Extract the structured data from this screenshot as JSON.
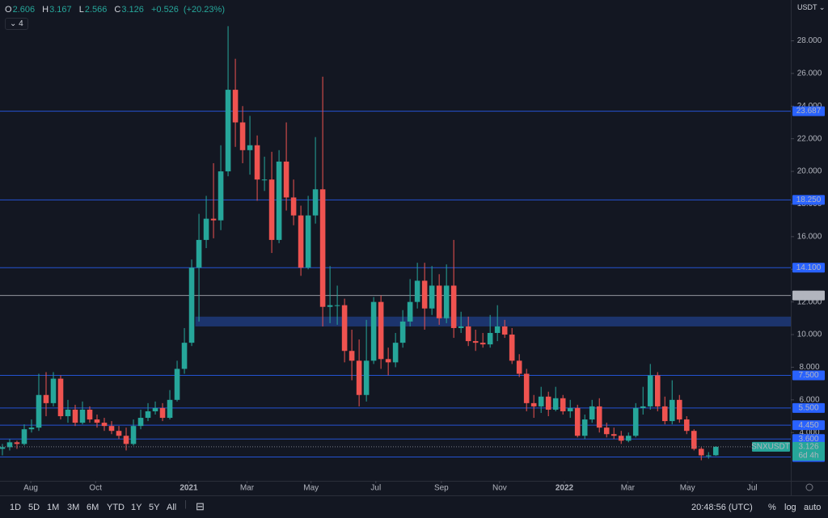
{
  "chart_data": {
    "type": "candlestick",
    "symbol": "SNXUSDT",
    "currency": "USDT",
    "indicator_count": "4",
    "legend": {
      "o": "O",
      "h": "H",
      "l": "L",
      "c": "C",
      "change": "+0.526",
      "change_pct": "(+20.23%)"
    },
    "countdown": "6d 4h",
    "up_color": "#26a69a",
    "down_color": "#ef5350",
    "open": [
      3.0,
      3.1,
      3.4,
      3.3,
      4.2,
      4.3,
      6.3,
      5.8,
      7.3,
      5.0,
      5.4,
      4.6,
      5.4,
      4.8,
      4.6,
      4.4,
      4.1,
      3.8,
      3.3,
      4.4,
      4.9,
      5.3,
      5.5,
      4.9,
      6.0,
      7.9,
      9.5,
      14.1,
      15.8,
      17.1,
      17.0,
      20.0,
      25.0,
      23.0,
      21.3,
      21.6,
      19.5,
      19.5,
      15.8,
      20.6,
      18.4,
      17.3,
      14.1,
      17.3,
      18.9,
      11.7,
      11.8,
      11.8,
      9.0,
      8.4,
      6.3,
      8.4,
      12.0,
      8.5,
      8.3,
      9.5,
      10.8,
      12.0,
      13.3,
      11.6,
      13.0,
      11.0,
      13.0,
      10.4,
      10.5,
      9.6,
      9.5,
      9.4,
      10.1,
      10.5,
      10.0,
      8.4,
      7.6,
      5.8,
      5.6,
      6.2,
      5.4,
      6.1,
      5.3,
      5.5,
      3.8,
      4.8,
      5.6,
      4.3,
      3.9,
      3.8,
      3.5,
      3.8,
      5.5,
      5.6,
      7.5,
      5.6,
      4.7,
      6.0,
      4.8,
      4.1,
      3.0,
      2.6,
      2.606
    ],
    "high": [
      3.3,
      3.6,
      3.5,
      4.5,
      4.8,
      7.6,
      7.7,
      7.7,
      7.5,
      6.0,
      5.7,
      5.9,
      5.6,
      5.1,
      4.9,
      4.7,
      4.4,
      4.3,
      4.8,
      5.4,
      5.8,
      5.9,
      5.8,
      6.6,
      8.4,
      10.4,
      14.6,
      17.4,
      18.5,
      20.5,
      21.6,
      28.9,
      26.9,
      24.0,
      23.4,
      22.2,
      20.9,
      21.2,
      21.3,
      23.0,
      19.5,
      17.9,
      18.5,
      22.1,
      25.8,
      14.2,
      13.0,
      12.2,
      10.3,
      9.7,
      10.9,
      12.3,
      12.4,
      9.2,
      10.1,
      11.5,
      13.4,
      14.4,
      14.4,
      14.2,
      13.7,
      14.3,
      15.8,
      11.4,
      11.1,
      10.3,
      10.1,
      11.2,
      11.8,
      10.9,
      10.4,
      8.8,
      7.9,
      6.3,
      6.8,
      6.5,
      6.8,
      6.3,
      6.0,
      5.7,
      5.1,
      6.0,
      6.1,
      4.6,
      4.3,
      4.1,
      4.0,
      5.8,
      6.8,
      8.2,
      7.7,
      6.2,
      7.2,
      6.3,
      5.0,
      4.2,
      3.1,
      2.8,
      3.167
    ],
    "low": [
      2.6,
      2.9,
      3.0,
      3.2,
      4.0,
      4.1,
      5.0,
      5.6,
      4.8,
      4.6,
      4.4,
      4.5,
      4.6,
      4.3,
      4.1,
      3.9,
      3.6,
      2.9,
      3.2,
      4.2,
      4.7,
      5.1,
      4.7,
      4.8,
      5.9,
      7.6,
      9.3,
      10.8,
      15.3,
      15.9,
      16.4,
      19.7,
      21.5,
      20.5,
      19.8,
      18.2,
      18.8,
      15.0,
      15.6,
      17.6,
      16.7,
      13.6,
      14.0,
      16.8,
      10.5,
      10.7,
      10.6,
      8.3,
      7.2,
      5.6,
      5.9,
      8.2,
      7.9,
      7.5,
      8.0,
      9.2,
      10.5,
      11.6,
      10.3,
      11.2,
      10.6,
      10.7,
      9.8,
      10.1,
      9.3,
      9.0,
      9.2,
      9.2,
      9.6,
      9.8,
      8.2,
      7.4,
      5.3,
      4.9,
      5.2,
      5.0,
      5.3,
      5.1,
      4.9,
      3.7,
      3.6,
      4.6,
      4.0,
      3.7,
      3.6,
      3.3,
      3.4,
      3.7,
      5.1,
      5.4,
      5.3,
      4.5,
      4.5,
      4.6,
      3.9,
      2.9,
      2.3,
      2.4,
      2.566
    ],
    "close": [
      3.1,
      3.4,
      3.3,
      4.2,
      4.3,
      6.3,
      5.8,
      7.3,
      5.0,
      5.4,
      4.6,
      5.4,
      4.8,
      4.6,
      4.4,
      4.1,
      3.8,
      3.3,
      4.4,
      4.9,
      5.3,
      5.5,
      4.9,
      6.0,
      7.9,
      9.5,
      14.1,
      15.8,
      17.1,
      17.0,
      20.0,
      25.0,
      23.0,
      21.3,
      21.6,
      19.5,
      19.5,
      15.8,
      20.6,
      18.4,
      17.3,
      14.1,
      17.3,
      18.9,
      11.7,
      11.8,
      11.8,
      9.0,
      8.4,
      6.3,
      8.4,
      12.0,
      8.5,
      8.3,
      9.5,
      10.8,
      12.0,
      13.3,
      11.6,
      13.0,
      11.0,
      13.0,
      10.4,
      10.5,
      9.6,
      9.5,
      9.4,
      10.1,
      10.5,
      10.0,
      8.4,
      7.6,
      5.8,
      5.6,
      6.2,
      5.4,
      6.1,
      5.3,
      5.5,
      3.8,
      4.8,
      5.6,
      4.3,
      3.9,
      3.8,
      3.5,
      3.8,
      5.5,
      5.6,
      7.5,
      5.6,
      4.7,
      6.0,
      4.8,
      4.1,
      3.0,
      2.6,
      2.6,
      3.126
    ],
    "ylim": [
      1.04,
      30.5
    ],
    "yticks": [
      {
        "value": 4,
        "label": "4.000"
      },
      {
        "value": 6,
        "label": "6.000"
      },
      {
        "value": 8,
        "label": "8.000"
      },
      {
        "value": 10,
        "label": "10.000"
      },
      {
        "value": 12,
        "label": "12.000"
      },
      {
        "value": 14,
        "label": "14.000"
      },
      {
        "value": 16,
        "label": "16.000"
      },
      {
        "value": 18,
        "label": "18.000"
      },
      {
        "value": 20,
        "label": "20.000"
      },
      {
        "value": 22,
        "label": "22.000"
      },
      {
        "value": 24,
        "label": "24.000"
      },
      {
        "value": 26,
        "label": "26.000"
      },
      {
        "value": 28,
        "label": "28.000"
      }
    ],
    "xlim": [
      -0.33,
      108.3
    ],
    "xticks": [
      {
        "value": 3.9,
        "label": "Aug"
      },
      {
        "value": 12.8,
        "label": "Oct"
      },
      {
        "value": 25.6,
        "label": "2021"
      },
      {
        "value": 33.6,
        "label": "Mar"
      },
      {
        "value": 42.4,
        "label": "May"
      },
      {
        "value": 51.3,
        "label": "Jul"
      },
      {
        "value": 60.3,
        "label": "Sep"
      },
      {
        "value": 68.3,
        "label": "Nov"
      },
      {
        "value": 77.2,
        "label": "2022"
      },
      {
        "value": 85.9,
        "label": "Mar"
      },
      {
        "value": 94.1,
        "label": "May"
      },
      {
        "value": 103,
        "label": "Jul"
      }
    ],
    "levels": [
      {
        "value": 23.687,
        "label": "23.687",
        "color": "#2962ff"
      },
      {
        "value": 18.25,
        "label": "18.250",
        "color": "#2962ff"
      },
      {
        "value": 14.1,
        "label": "14.100",
        "color": "#2962ff"
      },
      {
        "value": 12.4,
        "label": "12.400",
        "color": "#b2b5be"
      },
      {
        "value": 7.5,
        "label": "7.500",
        "color": "#2962ff"
      },
      {
        "value": 5.5,
        "label": "5.500",
        "color": "#2962ff"
      },
      {
        "value": 4.45,
        "label": "4.450",
        "color": "#2962ff"
      },
      {
        "value": 3.6,
        "label": "3.600",
        "color": "#2962ff"
      },
      {
        "value": 2.5,
        "label": "2.500",
        "color": "#2962ff"
      }
    ],
    "zone": {
      "low": 10.5,
      "high": 11.1,
      "start": 26.5,
      "color": "#1e3a7a"
    }
  },
  "toolbar": {
    "ranges": [
      "1D",
      "5D",
      "1M",
      "3M",
      "6M",
      "YTD",
      "1Y",
      "5Y",
      "All"
    ],
    "clock": "20:48:56 (UTC)",
    "percent": "%",
    "log": "log",
    "auto": "auto"
  }
}
